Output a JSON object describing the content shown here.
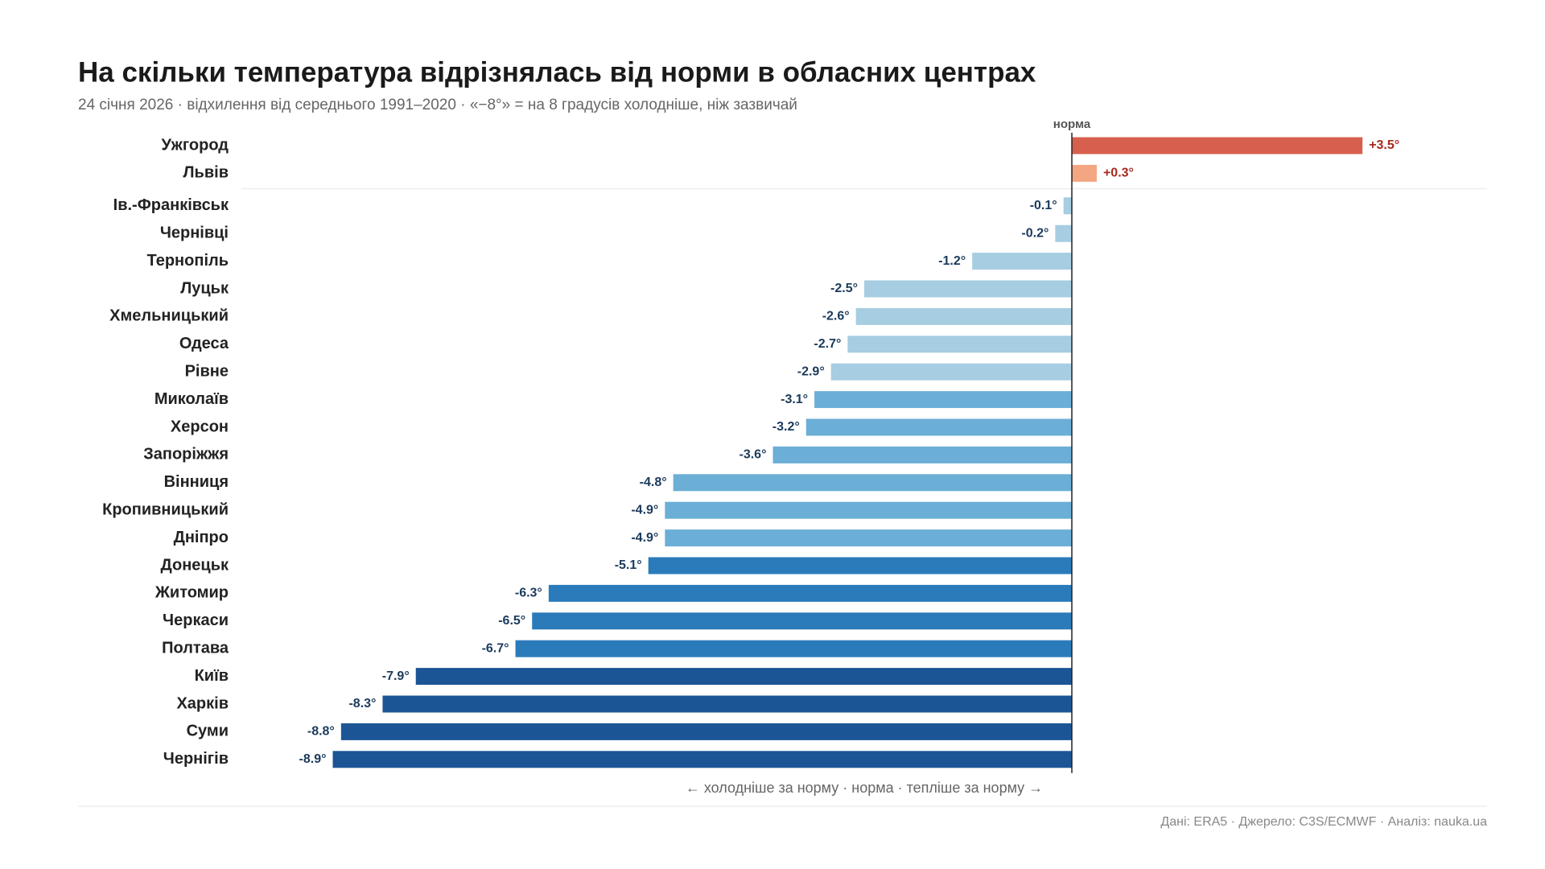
{
  "chart_data": {
    "type": "bar",
    "orientation": "horizontal",
    "title": "На скільки температура відрізнялась від норми в обласних центрах",
    "subtitle": "24 січня 2026 · відхилення від середнього 1991–2020 · «−8°» = на 8 градусів холодніше, ніж зазвичай",
    "zero_label": "норма",
    "note": "← холодніше за норму · норма · тепліше за норму →",
    "source": "Дані: ERA5 · Джерело: C3S/ECMWF · Аналіз: nauka.ua",
    "categories": [
      "Ужгород",
      "Львів",
      "Ів.-Франківськ",
      "Чернівці",
      "Тернопіль",
      "Луцьк",
      "Хмельницький",
      "Одеса",
      "Рівне",
      "Миколаїв",
      "Херсон",
      "Запоріжжя",
      "Вінниця",
      "Кропивницький",
      "Дніпро",
      "Донецьк",
      "Житомир",
      "Черкаси",
      "Полтава",
      "Київ",
      "Харків",
      "Суми",
      "Чернігів"
    ],
    "values": [
      3.5,
      0.3,
      -0.1,
      -0.2,
      -1.2,
      -2.5,
      -2.6,
      -2.7,
      -2.9,
      -3.1,
      -3.2,
      -3.6,
      -4.8,
      -4.9,
      -4.9,
      -5.1,
      -6.3,
      -6.5,
      -6.7,
      -7.9,
      -8.3,
      -8.8,
      -8.9
    ],
    "value_labels": [
      "+3.5°",
      "+0.3°",
      "-0.1°",
      "-0.2°",
      "-1.2°",
      "-2.5°",
      "-2.6°",
      "-2.7°",
      "-2.9°",
      "-3.1°",
      "-3.2°",
      "-3.6°",
      "-4.8°",
      "-4.9°",
      "-4.9°",
      "-5.1°",
      "-6.3°",
      "-6.5°",
      "-6.7°",
      "-7.9°",
      "-8.3°",
      "-8.8°",
      "-8.9°"
    ],
    "colors": [
      "#d6604d",
      "#f4a582",
      "#a6cde2",
      "#a6cde2",
      "#a6cde2",
      "#a6cde2",
      "#a6cde2",
      "#a6cde2",
      "#a6cde2",
      "#6baed6",
      "#6baed6",
      "#6baed6",
      "#6baed6",
      "#6baed6",
      "#6baed6",
      "#2b7bba",
      "#2b7bba",
      "#2b7bba",
      "#2b7bba",
      "#1c5596",
      "#1c5596",
      "#1c5596",
      "#1c5596"
    ],
    "xlim": [
      -10,
      5
    ]
  }
}
